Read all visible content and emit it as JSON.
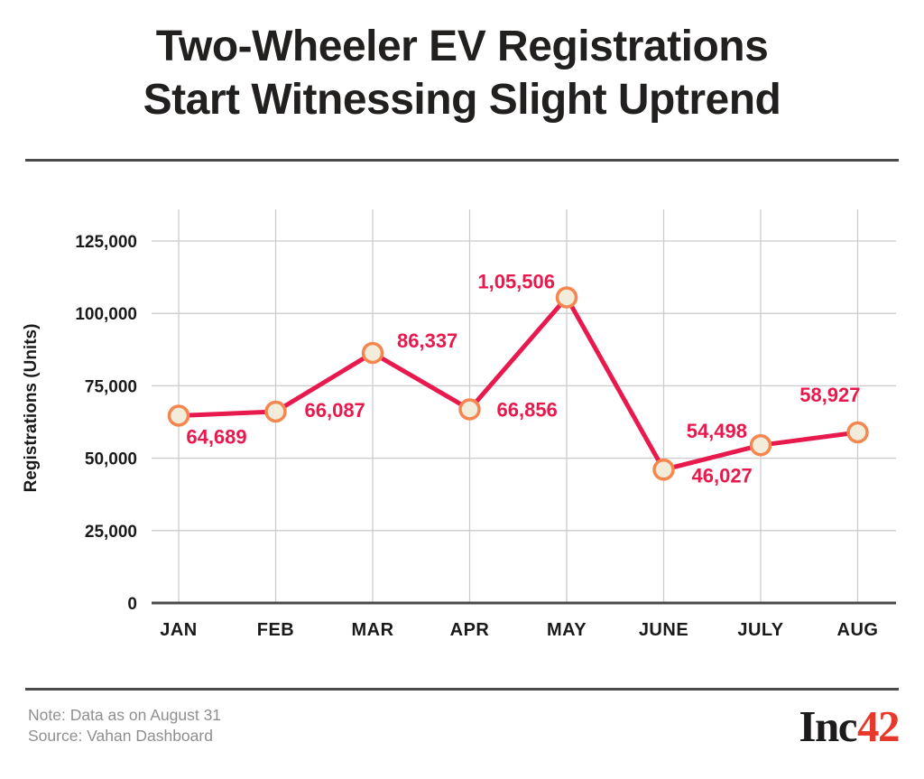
{
  "header": {
    "title_line1": "Two-Wheeler EV Registrations",
    "title_line2": "Start Witnessing Slight Uptrend"
  },
  "chart_data": {
    "type": "line",
    "series_name": "Two-wheeler EV registrations",
    "categories": [
      "JAN",
      "FEB",
      "MAR",
      "APR",
      "MAY",
      "JUNE",
      "JULY",
      "AUG"
    ],
    "values": [
      64689,
      66087,
      86337,
      66856,
      105506,
      46027,
      54498,
      58927
    ],
    "value_labels": [
      "64,689",
      "66,087",
      "86,337",
      "66,856",
      "1,05,506",
      "46,027",
      "54,498",
      "58,927"
    ],
    "title": "",
    "xlabel": "",
    "ylabel": "Registrations (Units)",
    "ylim": [
      0,
      125000
    ],
    "yticks": [
      0,
      25000,
      50000,
      75000,
      100000,
      125000
    ],
    "ytick_labels": [
      "0",
      "25,000",
      "50,000",
      "75,000",
      "100,000",
      "125,000"
    ],
    "grid": true,
    "legend": false,
    "colors": {
      "line": "#e7194d",
      "marker_fill": "#f2ecdb",
      "marker_stroke": "#f6864f",
      "data_label": "#e7194d",
      "grid": "#cccccc",
      "axis": "#4a4a4a",
      "tick_label": "#1a1a1a",
      "axis_title": "#1a1a1a"
    }
  },
  "footer": {
    "note_line1": "Note: Data as on August 31",
    "note_line2": "Source: Vahan Dashboard",
    "logo": {
      "black_part": "Inc",
      "red_part": "42"
    }
  },
  "colors": {
    "title_color": "#221f1f",
    "divider_color": "#4a4a4a",
    "note_color": "#8f8f8f",
    "logo_black": "#1d1b1b",
    "logo_red": "#e6392b",
    "background": "#ffffff"
  }
}
